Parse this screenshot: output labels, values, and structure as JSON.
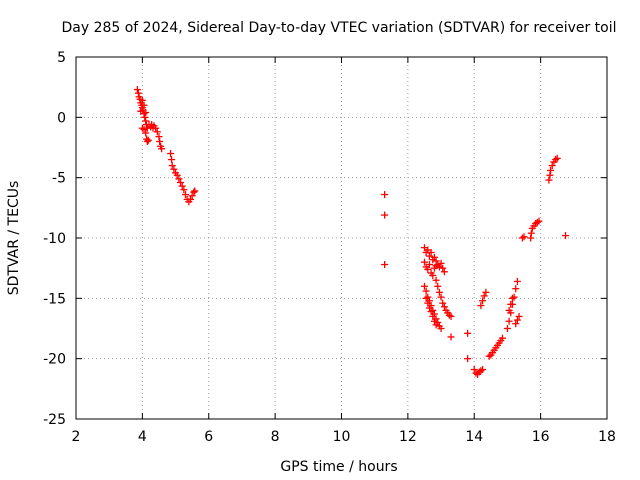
{
  "chart_data": {
    "type": "scatter",
    "title": "Day 285 of 2024, Sidereal Day-to-day VTEC variation (SDTVAR) for receiver toil",
    "xlabel": "GPS time / hours",
    "ylabel": "SDTVAR / TECUs",
    "xlim": [
      2,
      18
    ],
    "ylim": [
      -25,
      5
    ],
    "xticks": [
      2,
      4,
      6,
      8,
      10,
      12,
      14,
      16,
      18
    ],
    "yticks": [
      -25,
      -20,
      -15,
      -10,
      -5,
      0,
      5
    ],
    "xtick_labels": [
      "2",
      "4",
      "6",
      "8",
      "10",
      "12",
      "14",
      "16",
      "18"
    ],
    "ytick_labels": [
      "-25",
      "-20",
      "-15",
      "-10",
      "-5",
      "0",
      "5"
    ],
    "grid": true,
    "marker": "plus",
    "color": "#ff0000",
    "series": [
      {
        "name": "SDTVAR",
        "points": [
          [
            3.85,
            2.3
          ],
          [
            3.88,
            2.0
          ],
          [
            3.9,
            1.7
          ],
          [
            3.93,
            1.5
          ],
          [
            3.95,
            1.2
          ],
          [
            3.98,
            1.0
          ],
          [
            4.0,
            0.8
          ],
          [
            4.02,
            0.6
          ],
          [
            4.05,
            0.3
          ],
          [
            4.07,
            0.0
          ],
          [
            4.1,
            -0.3
          ],
          [
            4.12,
            -0.6
          ],
          [
            4.15,
            -0.9
          ],
          [
            3.95,
            0.5
          ],
          [
            4.0,
            1.4
          ],
          [
            4.05,
            1.0
          ],
          [
            4.1,
            0.4
          ],
          [
            4.0,
            -0.9
          ],
          [
            4.05,
            -1.0
          ],
          [
            4.1,
            -1.3
          ],
          [
            4.13,
            -1.8
          ],
          [
            4.15,
            -2.0
          ],
          [
            4.18,
            -1.9
          ],
          [
            4.2,
            -0.6
          ],
          [
            4.25,
            -0.8
          ],
          [
            4.28,
            -0.6
          ],
          [
            4.32,
            -0.9
          ],
          [
            4.35,
            -0.7
          ],
          [
            4.4,
            -0.9
          ],
          [
            4.45,
            -1.2
          ],
          [
            4.5,
            -1.6
          ],
          [
            4.52,
            -2.0
          ],
          [
            4.55,
            -2.4
          ],
          [
            4.58,
            -2.6
          ],
          [
            4.85,
            -3.0
          ],
          [
            4.88,
            -3.5
          ],
          [
            4.9,
            -4.0
          ],
          [
            4.95,
            -4.3
          ],
          [
            5.0,
            -4.6
          ],
          [
            5.05,
            -4.8
          ],
          [
            5.1,
            -5.1
          ],
          [
            5.15,
            -5.4
          ],
          [
            5.2,
            -5.7
          ],
          [
            5.25,
            -6.0
          ],
          [
            5.3,
            -6.4
          ],
          [
            5.35,
            -6.8
          ],
          [
            5.4,
            -7.0
          ],
          [
            5.45,
            -6.8
          ],
          [
            5.5,
            -6.5
          ],
          [
            5.55,
            -6.2
          ],
          [
            5.58,
            -6.1
          ],
          [
            11.3,
            -6.4
          ],
          [
            11.3,
            -8.1
          ],
          [
            11.3,
            -12.2
          ],
          [
            12.5,
            -10.8
          ],
          [
            12.55,
            -11.2
          ],
          [
            12.6,
            -11.0
          ],
          [
            12.65,
            -11.5
          ],
          [
            12.7,
            -11.2
          ],
          [
            12.75,
            -11.8
          ],
          [
            12.8,
            -11.6
          ],
          [
            12.85,
            -11.9
          ],
          [
            12.9,
            -12.2
          ],
          [
            12.95,
            -12.4
          ],
          [
            13.0,
            -12.1
          ],
          [
            13.05,
            -12.5
          ],
          [
            13.1,
            -12.8
          ],
          [
            12.5,
            -12.0
          ],
          [
            12.55,
            -12.4
          ],
          [
            12.6,
            -12.6
          ],
          [
            12.65,
            -12.2
          ],
          [
            12.7,
            -12.9
          ],
          [
            12.75,
            -13.1
          ],
          [
            12.8,
            -12.5
          ],
          [
            12.85,
            -12.3
          ],
          [
            12.85,
            -13.5
          ],
          [
            12.9,
            -14.0
          ],
          [
            12.95,
            -14.5
          ],
          [
            13.0,
            -14.9
          ],
          [
            13.05,
            -15.4
          ],
          [
            13.1,
            -15.7
          ],
          [
            13.15,
            -16.0
          ],
          [
            13.2,
            -16.2
          ],
          [
            13.25,
            -16.4
          ],
          [
            13.3,
            -16.5
          ],
          [
            12.5,
            -14.0
          ],
          [
            12.55,
            -14.4
          ],
          [
            12.6,
            -14.9
          ],
          [
            12.65,
            -15.2
          ],
          [
            12.7,
            -15.6
          ],
          [
            12.75,
            -16.0
          ],
          [
            12.8,
            -16.3
          ],
          [
            12.85,
            -16.7
          ],
          [
            12.9,
            -17.0
          ],
          [
            12.95,
            -17.3
          ],
          [
            13.0,
            -17.5
          ],
          [
            13.3,
            -18.2
          ],
          [
            12.55,
            -15.0
          ],
          [
            12.6,
            -15.4
          ],
          [
            12.65,
            -15.8
          ],
          [
            12.7,
            -16.1
          ],
          [
            12.75,
            -16.5
          ],
          [
            12.8,
            -16.9
          ],
          [
            12.85,
            -17.2
          ],
          [
            13.8,
            -17.9
          ],
          [
            13.8,
            -20.0
          ],
          [
            14.0,
            -20.9
          ],
          [
            14.05,
            -21.2
          ],
          [
            14.1,
            -21.3
          ],
          [
            14.15,
            -21.1
          ],
          [
            14.2,
            -21.0
          ],
          [
            14.25,
            -20.9
          ],
          [
            14.2,
            -15.6
          ],
          [
            14.25,
            -15.2
          ],
          [
            14.3,
            -14.8
          ],
          [
            14.35,
            -14.5
          ],
          [
            14.45,
            -19.8
          ],
          [
            14.5,
            -19.7
          ],
          [
            14.55,
            -19.5
          ],
          [
            14.6,
            -19.3
          ],
          [
            14.65,
            -19.1
          ],
          [
            14.7,
            -18.9
          ],
          [
            14.75,
            -18.7
          ],
          [
            14.8,
            -18.5
          ],
          [
            14.85,
            -18.3
          ],
          [
            15.0,
            -17.5
          ],
          [
            15.05,
            -16.9
          ],
          [
            15.1,
            -16.2
          ],
          [
            15.15,
            -15.5
          ],
          [
            15.2,
            -14.9
          ],
          [
            15.25,
            -14.2
          ],
          [
            15.3,
            -13.6
          ],
          [
            15.05,
            -16.0
          ],
          [
            15.1,
            -15.5
          ],
          [
            15.15,
            -15.0
          ],
          [
            15.25,
            -17.1
          ],
          [
            15.3,
            -16.8
          ],
          [
            15.35,
            -16.5
          ],
          [
            15.45,
            -10.0
          ],
          [
            15.5,
            -9.9
          ],
          [
            15.7,
            -10.0
          ],
          [
            15.72,
            -9.6
          ],
          [
            15.75,
            -9.2
          ],
          [
            15.8,
            -9.0
          ],
          [
            15.85,
            -8.8
          ],
          [
            15.9,
            -8.7
          ],
          [
            15.95,
            -8.6
          ],
          [
            16.25,
            -5.2
          ],
          [
            16.28,
            -4.8
          ],
          [
            16.3,
            -4.4
          ],
          [
            16.35,
            -4.0
          ],
          [
            16.4,
            -3.7
          ],
          [
            16.45,
            -3.5
          ],
          [
            16.5,
            -3.4
          ],
          [
            16.75,
            -9.8
          ]
        ]
      }
    ]
  }
}
